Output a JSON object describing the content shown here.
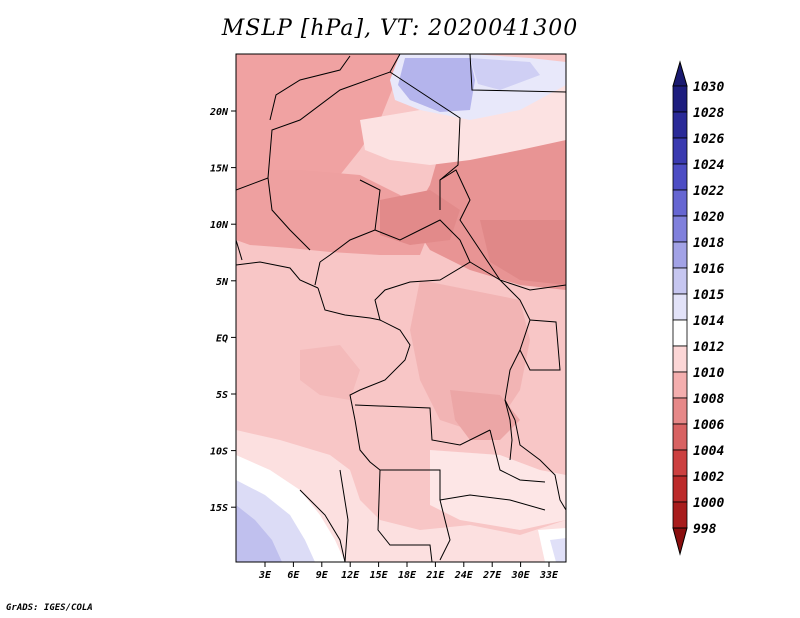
{
  "title": "MSLP [hPa], VT: 2020041300",
  "footer": "GrADS: IGES/COLA",
  "map": {
    "lon_ticks": [
      "3E",
      "6E",
      "9E",
      "12E",
      "15E",
      "18E",
      "21E",
      "24E",
      "27E",
      "30E",
      "33E"
    ],
    "lat_ticks": [
      "20N",
      "15N",
      "10N",
      "5N",
      "EQ",
      "5S",
      "10S",
      "15S"
    ]
  },
  "colorbar": {
    "levels": [
      "1030",
      "1028",
      "1026",
      "1024",
      "1022",
      "1020",
      "1018",
      "1016",
      "1015",
      "1014",
      "1012",
      "1010",
      "1008",
      "1006",
      "1004",
      "1002",
      "1000",
      "998"
    ],
    "colors": [
      "#1d1d7e",
      "#2a2a98",
      "#3a3ab0",
      "#4d4dc4",
      "#6666d2",
      "#8080dc",
      "#a2a2e6",
      "#c6c6f0",
      "#e2e2f8",
      "#ffffff",
      "#fcd6d6",
      "#f4aeae",
      "#e68888",
      "#d86262",
      "#cc4040",
      "#bc2a2a",
      "#a81c1c",
      "#901010"
    ],
    "top_tip_color": "#1a1a70",
    "bottom_tip_color": "#8a0e0e"
  }
}
